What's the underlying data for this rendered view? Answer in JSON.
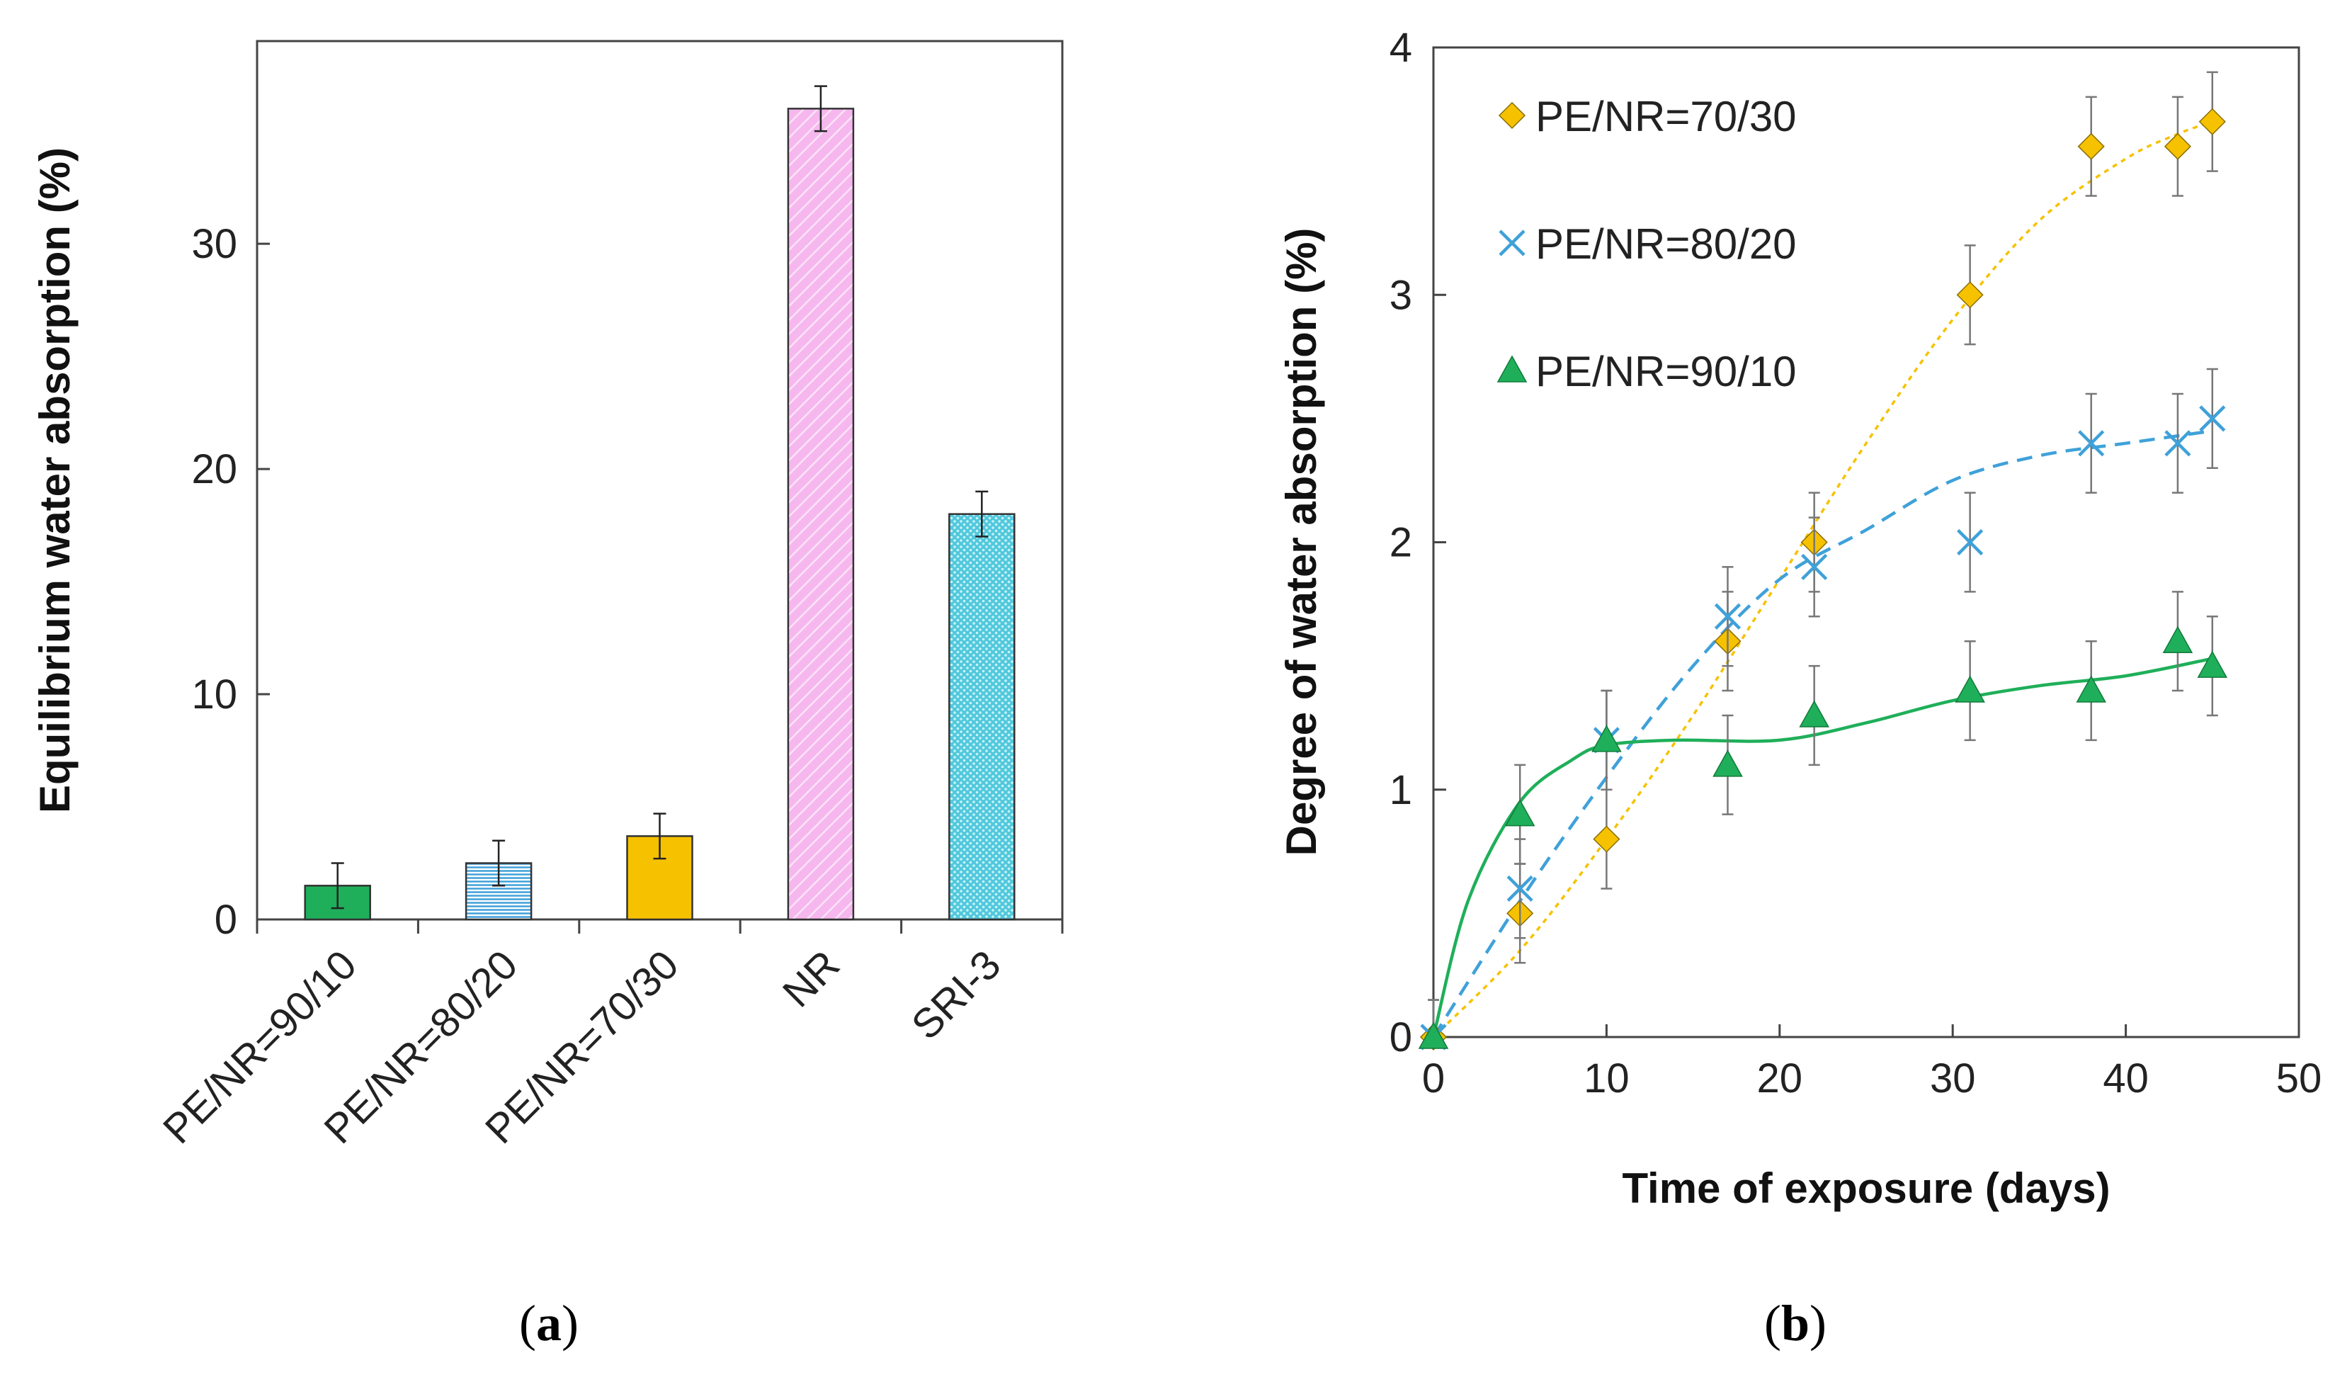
{
  "colors": {
    "green": "#1faf5a",
    "blue": "#3fa1d9",
    "orange": "#f6c200",
    "pink": "#f6b7ee",
    "cyan": "#51c8dc",
    "gray": "#777777",
    "axis": "#444444"
  },
  "chart_data": [
    {
      "panel_label_pre": "(",
      "panel_label": "a",
      "panel_label_post": ")",
      "type": "bar",
      "title": "",
      "xlabel": "",
      "ylabel": "Equilibrium water absorption (%)",
      "ylim": [
        0,
        39
      ],
      "yticks": [
        0,
        10,
        20,
        30
      ],
      "categories": [
        "PE/NR=90/10",
        "PE/NR=80/20",
        "PE/NR=70/30",
        "NR",
        "SRI-3"
      ],
      "values": [
        1.5,
        2.5,
        3.7,
        36.0,
        18.0
      ],
      "errors": [
        1.0,
        1.0,
        1.0,
        1.0,
        1.0
      ],
      "bar_colors": [
        "#1faf5a",
        "#3fa1d9",
        "#f6c200",
        "#f6b7ee",
        "#51c8dc"
      ],
      "bar_patterns": [
        "solid",
        "hlines",
        "solid",
        "diag",
        "dots"
      ]
    },
    {
      "panel_label_pre": "(",
      "panel_label": "b",
      "panel_label_post": ")",
      "type": "scatter",
      "title": "",
      "xlabel": "Time of exposure (days)",
      "ylabel": "Degree of water absorption (%)",
      "xlim": [
        0,
        50
      ],
      "ylim": [
        0,
        4
      ],
      "xticks": [
        0,
        10,
        20,
        30,
        40,
        50
      ],
      "yticks": [
        0,
        1,
        2,
        3,
        4
      ],
      "legend_position": "top-left",
      "series": [
        {
          "name": "PE/NR=70/30",
          "marker": "diamond",
          "color": "#f6c200",
          "trend": "dotted",
          "x": [
            0,
            5,
            10,
            17,
            22,
            31,
            38,
            43,
            45
          ],
          "y": [
            0,
            0.5,
            0.8,
            1.6,
            2.0,
            3.0,
            3.6,
            3.6,
            3.7
          ],
          "err": [
            0.15,
            0.2,
            0.2,
            0.2,
            0.2,
            0.2,
            0.2,
            0.2,
            0.2
          ],
          "fit": [
            [
              0,
              0
            ],
            [
              5,
              0.35
            ],
            [
              10,
              0.8
            ],
            [
              15,
              1.3
            ],
            [
              20,
              1.85
            ],
            [
              25,
              2.4
            ],
            [
              30,
              2.9
            ],
            [
              35,
              3.3
            ],
            [
              40,
              3.55
            ],
            [
              43,
              3.65
            ],
            [
              45,
              3.7
            ]
          ]
        },
        {
          "name": "PE/NR=80/20",
          "marker": "x",
          "color": "#3fa1d9",
          "trend": "dashed",
          "x": [
            0,
            5,
            10,
            17,
            22,
            31,
            38,
            43,
            45
          ],
          "y": [
            0,
            0.6,
            1.2,
            1.7,
            1.9,
            2.0,
            2.4,
            2.4,
            2.5
          ],
          "err": [
            0.15,
            0.2,
            0.2,
            0.2,
            0.2,
            0.2,
            0.2,
            0.2,
            0.2
          ],
          "fit": [
            [
              0,
              0
            ],
            [
              5,
              0.55
            ],
            [
              10,
              1.05
            ],
            [
              15,
              1.5
            ],
            [
              20,
              1.85
            ],
            [
              25,
              2.05
            ],
            [
              30,
              2.25
            ],
            [
              35,
              2.35
            ],
            [
              40,
              2.4
            ],
            [
              45,
              2.45
            ]
          ]
        },
        {
          "name": "PE/NR=90/10",
          "marker": "triangle",
          "color": "#1faf5a",
          "trend": "solid",
          "x": [
            0,
            5,
            10,
            17,
            22,
            31,
            38,
            43,
            45
          ],
          "y": [
            0,
            0.9,
            1.2,
            1.1,
            1.3,
            1.4,
            1.4,
            1.6,
            1.5
          ],
          "err": [
            0.15,
            0.2,
            0.2,
            0.2,
            0.2,
            0.2,
            0.2,
            0.2,
            0.2
          ],
          "fit": [
            [
              0,
              0
            ],
            [
              2,
              0.55
            ],
            [
              5,
              0.95
            ],
            [
              8,
              1.12
            ],
            [
              10,
              1.18
            ],
            [
              14,
              1.2
            ],
            [
              20,
              1.2
            ],
            [
              25,
              1.27
            ],
            [
              30,
              1.36
            ],
            [
              35,
              1.42
            ],
            [
              40,
              1.46
            ],
            [
              45,
              1.53
            ]
          ]
        }
      ]
    }
  ]
}
